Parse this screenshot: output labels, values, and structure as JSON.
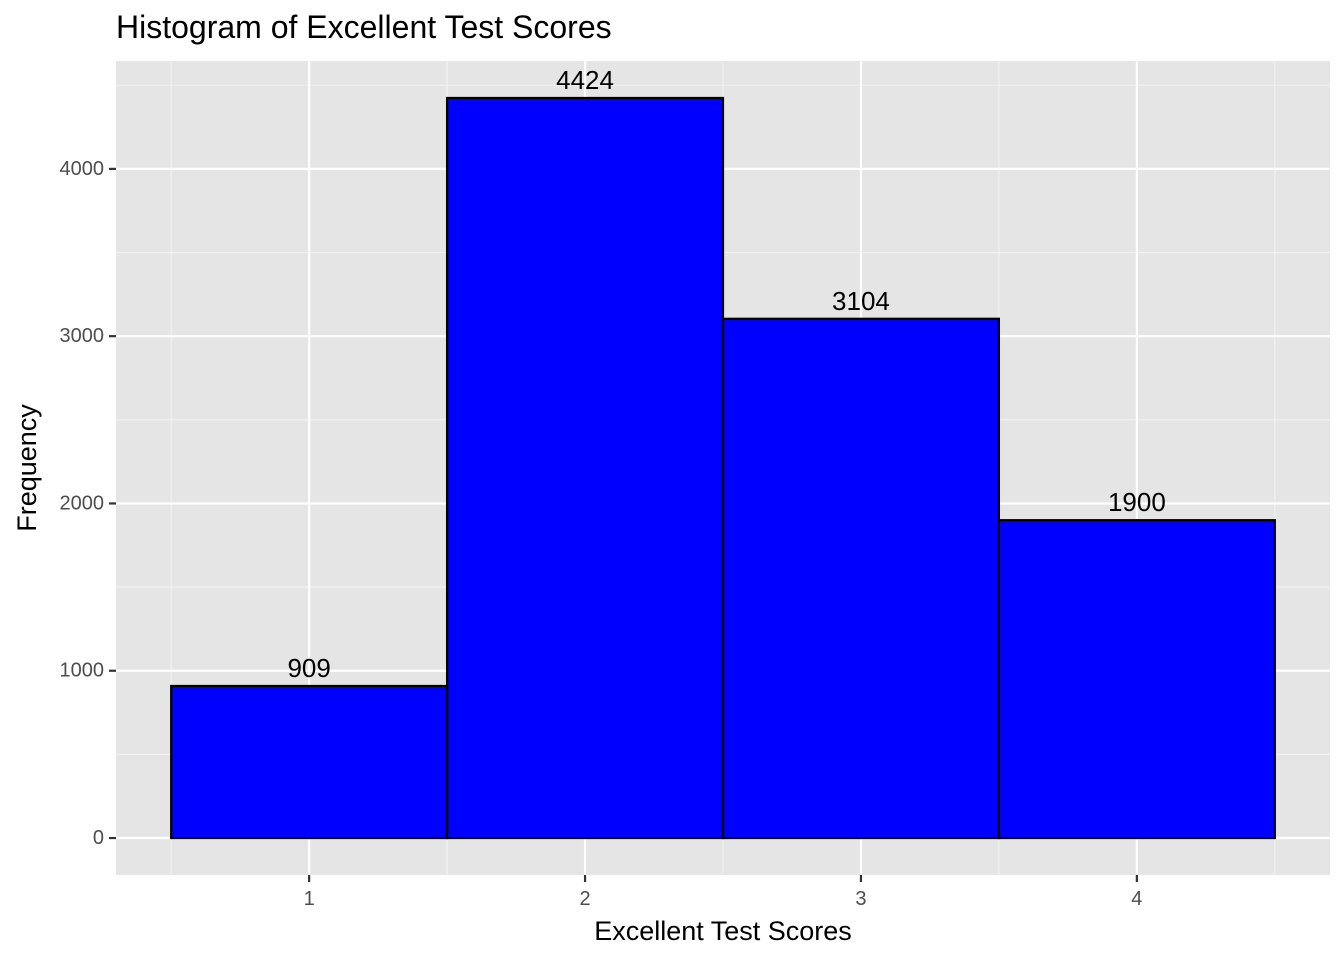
{
  "chart_data": {
    "type": "bar",
    "title": "Histogram of Excellent Test Scores",
    "xlabel": "Excellent Test Scores",
    "ylabel": "Frequency",
    "categories": [
      "1",
      "2",
      "3",
      "4"
    ],
    "x": [
      1,
      2,
      3,
      4
    ],
    "values": [
      909,
      4424,
      3104,
      1900
    ],
    "data_labels": [
      "909",
      "4424",
      "3104",
      "1900"
    ],
    "xlim": [
      0.3,
      4.7
    ],
    "ylim": [
      -221,
      4645
    ],
    "xticks": [
      1,
      2,
      3,
      4
    ],
    "yticks": [
      0,
      1000,
      2000,
      3000,
      4000
    ],
    "ytick_labels": [
      "0",
      "1000",
      "2000",
      "3000",
      "4000"
    ],
    "bar_width": 1,
    "grid": true,
    "legend": "none",
    "colors": {
      "bar_fill": "#0000ff",
      "bar_outline": "#000000",
      "panel_background": "#e5e5e5",
      "grid_major": "#ffffff",
      "grid_minor": "#f2f2f2",
      "tick_text": "#4d4d4d",
      "text": "#000000"
    }
  }
}
